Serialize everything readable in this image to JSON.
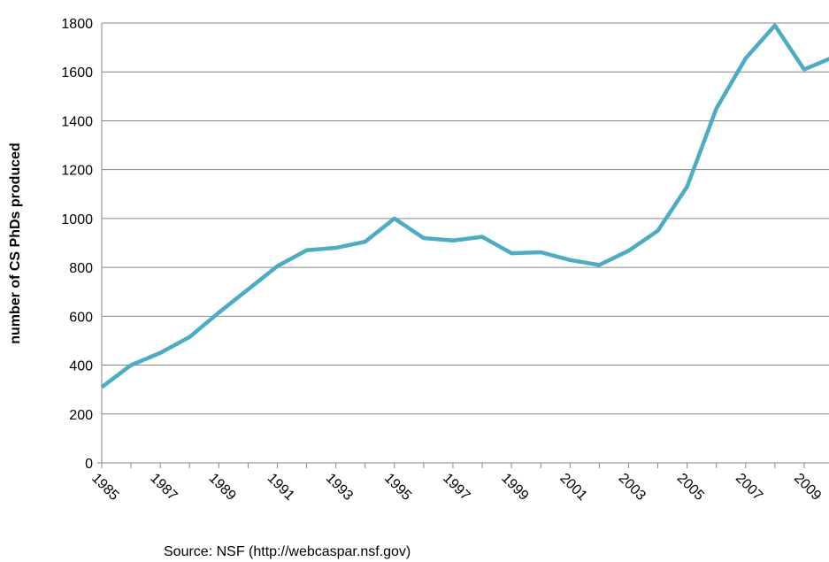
{
  "chart_data": {
    "type": "line",
    "y_label": "number of CS PhDs produced",
    "source": "Source: NSF (http://webcaspar.nsf.gov)",
    "categories": [
      "1985",
      null,
      "1987",
      null,
      "1989",
      null,
      "1991",
      null,
      "1993",
      null,
      "1995",
      null,
      "1997",
      null,
      "1999",
      null,
      "2001",
      null,
      "2003",
      null,
      "2005",
      null,
      "2007",
      null,
      "2009",
      null
    ],
    "series": [
      {
        "color": "#4bacc6",
        "values": [
          310,
          400,
          450,
          515,
          615,
          710,
          805,
          870,
          880,
          905,
          1000,
          920,
          910,
          925,
          858,
          862,
          830,
          810,
          868,
          950,
          1130,
          1450,
          1655,
          1790,
          1610,
          1660
        ]
      }
    ],
    "ylim": [
      0,
      1800
    ],
    "yticks": [
      0,
      200,
      400,
      600,
      800,
      1000,
      1200,
      1400,
      1600,
      1800
    ],
    "grid": true
  }
}
